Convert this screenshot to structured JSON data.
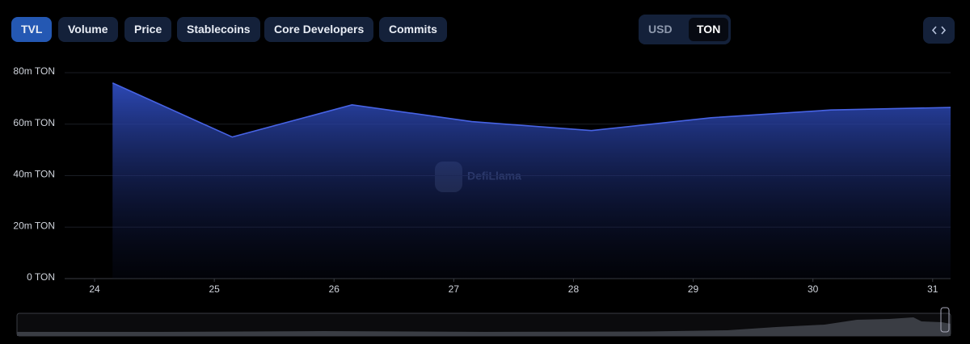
{
  "tabs": [
    "TVL",
    "Volume",
    "Price",
    "Stablecoins",
    "Core Developers",
    "Commits"
  ],
  "active_tab": "TVL",
  "currencies": [
    "USD",
    "TON"
  ],
  "active_currency": "TON",
  "watermark": "DefiLlama",
  "chart_data": {
    "type": "area",
    "x": [
      24.15,
      25.15,
      26.15,
      27.15,
      28.15,
      29.15,
      30.15,
      31.15
    ],
    "series": [
      {
        "name": "TVL",
        "color": "#4763e4",
        "values": [
          76000000,
          55000000,
          67500000,
          61000000,
          57500000,
          62500000,
          65500000,
          66500000
        ]
      }
    ],
    "xlim": [
      23.75,
      31.15
    ],
    "xticks": [
      24,
      25,
      26,
      27,
      28,
      29,
      30,
      31
    ],
    "ylim": [
      0,
      80000000
    ],
    "yticks": [
      {
        "value": 0,
        "label": "0 TON"
      },
      {
        "value": 20000000,
        "label": "20m TON"
      },
      {
        "value": 40000000,
        "label": "40m TON"
      },
      {
        "value": 60000000,
        "label": "60m TON"
      },
      {
        "value": 80000000,
        "label": "80m TON"
      }
    ],
    "grid": true
  }
}
